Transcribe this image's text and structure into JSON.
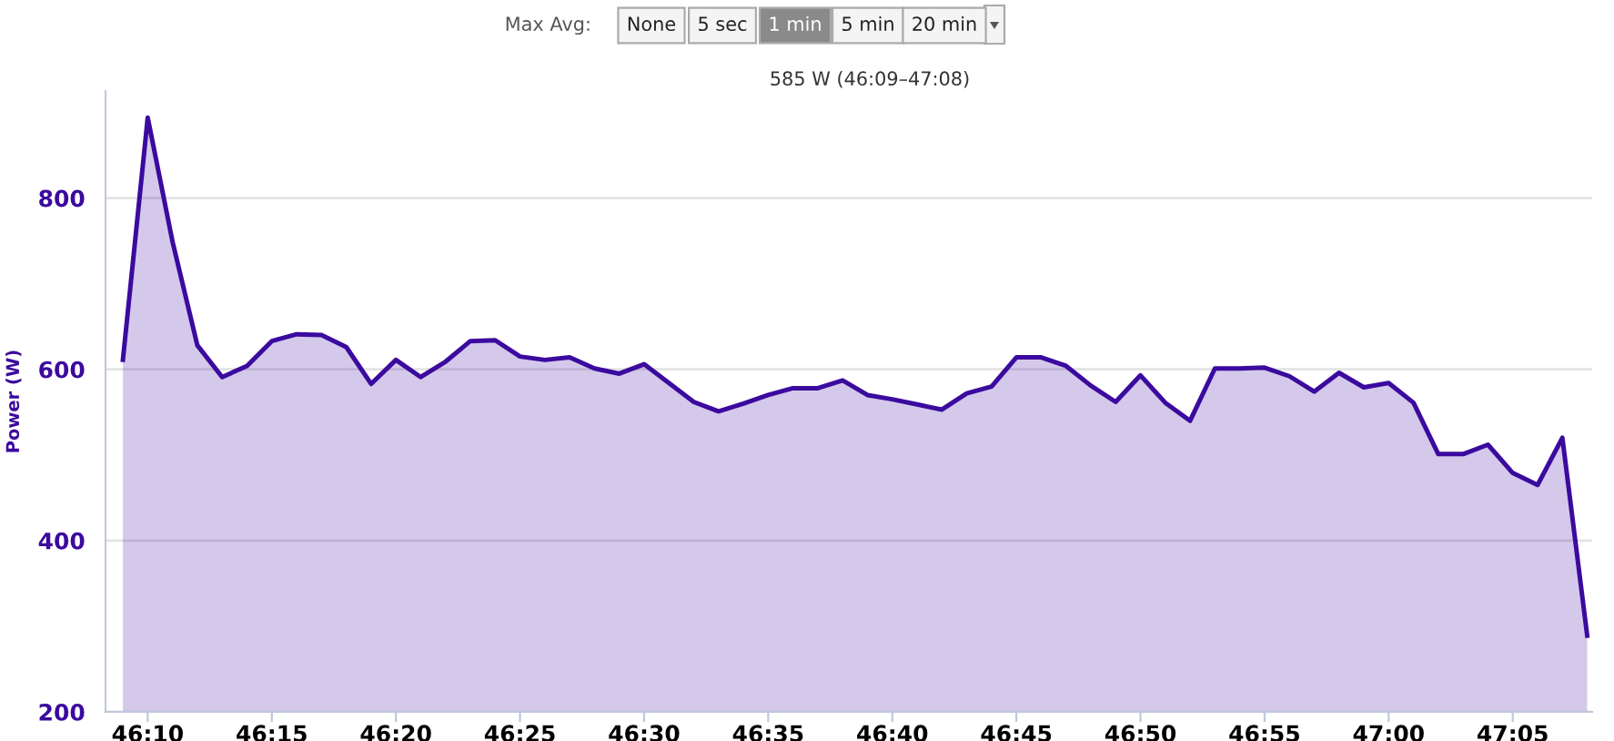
{
  "chart_data": {
    "type": "area",
    "ylabel": "Power (W)",
    "annotations": [
      "Max Avg:",
      "None",
      "5 sec",
      "1 min",
      "5 min",
      "20 min",
      "585 W (46:09–47:08)"
    ],
    "x": [
      2769,
      2770,
      2771,
      2772,
      2773,
      2774,
      2775,
      2776,
      2777,
      2778,
      2779,
      2780,
      2781,
      2782,
      2783,
      2784,
      2785,
      2786,
      2787,
      2788,
      2789,
      2790,
      2791,
      2792,
      2793,
      2794,
      2795,
      2796,
      2797,
      2798,
      2799,
      2800,
      2801,
      2802,
      2803,
      2804,
      2805,
      2806,
      2807,
      2808,
      2809,
      2810,
      2811,
      2812,
      2813,
      2814,
      2815,
      2816,
      2817,
      2818,
      2819,
      2820,
      2821,
      2822,
      2823,
      2824,
      2825,
      2826,
      2827,
      2828
    ],
    "series": [
      {
        "color": "#3b0a9e",
        "values": [
          611,
          894,
          749,
          628,
          591,
          604,
          633,
          641,
          640,
          626,
          583,
          611,
          591,
          609,
          633,
          634,
          615,
          611,
          614,
          601,
          595,
          606,
          584,
          562,
          551,
          560,
          570,
          578,
          578,
          587,
          570,
          565,
          559,
          553,
          572,
          580,
          614,
          614,
          604,
          581,
          562,
          593,
          561,
          540,
          601,
          601,
          602,
          592,
          574,
          596,
          579,
          584,
          561,
          501,
          501,
          512,
          479,
          465,
          520,
          289
        ]
      }
    ],
    "xlim": [
      2768.3,
      2828.2
    ],
    "ylim": [
      200,
      925
    ],
    "xticks": [
      {
        "value": 2770,
        "label": "46:10"
      },
      {
        "value": 2775,
        "label": "46:15"
      },
      {
        "value": 2780,
        "label": "46:20"
      },
      {
        "value": 2785,
        "label": "46:25"
      },
      {
        "value": 2790,
        "label": "46:30"
      },
      {
        "value": 2795,
        "label": "46:35"
      },
      {
        "value": 2800,
        "label": "46:40"
      },
      {
        "value": 2805,
        "label": "46:45"
      },
      {
        "value": 2810,
        "label": "46:50"
      },
      {
        "value": 2815,
        "label": "46:55"
      },
      {
        "value": 2820,
        "label": "47:00"
      },
      {
        "value": 2825,
        "label": "47:05"
      }
    ],
    "yticks": [
      200,
      400,
      600,
      800
    ],
    "grid": "y",
    "legend": false
  }
}
